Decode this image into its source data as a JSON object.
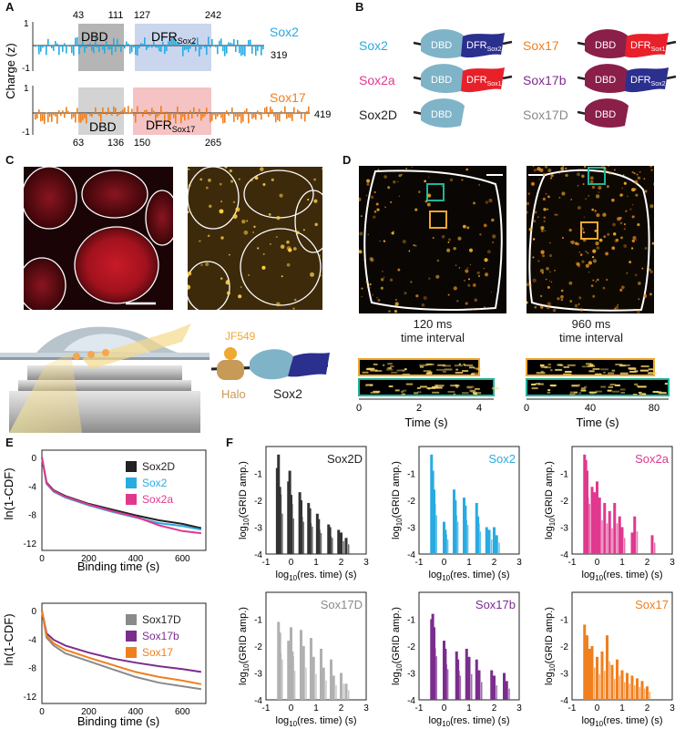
{
  "colors": {
    "sox2": "#29abe2",
    "sox2a": "#e0388f",
    "sox2d": "#222222",
    "sox17": "#f07f1e",
    "sox17b": "#7b2d8e",
    "sox17d": "#8a8a8a",
    "sox17d_bar": "#b0b0b0",
    "sox2d_bar": "#333333",
    "dbd": "#7fb3c8",
    "dbd17": "#8a1f4a",
    "dfr_sox2": "#2b2f8e",
    "dfr_sox17": "#e8202a",
    "teal_box": "#1fb59a",
    "orange_box": "#f0a830"
  },
  "panels": {
    "a": "A",
    "b": "B",
    "c": "C",
    "d": "D",
    "e": "E",
    "f": "F"
  },
  "panel_a": {
    "ylabel": "Charge (z)",
    "top": {
      "name": "Sox2",
      "dbd": "DBD",
      "dfr": "DFR",
      "dfr_sub": "Sox2",
      "pos": [
        "43",
        "111",
        "127",
        "242"
      ],
      "end": "319",
      "yticks": [
        "1",
        "0",
        "-1"
      ]
    },
    "bottom": {
      "name": "Sox17",
      "dbd": "DBD",
      "dfr": "DFR",
      "dfr_sub": "Sox17",
      "pos": [
        "63",
        "136",
        "150",
        "265"
      ],
      "end": "419",
      "yticks": [
        "1",
        "0",
        "-1"
      ]
    }
  },
  "panel_b": {
    "left": [
      {
        "name": "Sox2",
        "dbd": "DBD",
        "dfr": "DFR",
        "dfr_sub": "Sox2"
      },
      {
        "name": "Sox2a",
        "dbd": "DBD",
        "dfr": "DFR",
        "dfr_sub": "Sox17"
      },
      {
        "name": "Sox2D",
        "dbd": "DBD"
      }
    ],
    "right": [
      {
        "name": "Sox17",
        "dbd": "DBD",
        "dfr": "DFR",
        "dfr_sub": "Sox17"
      },
      {
        "name": "Sox17b",
        "dbd": "DBD",
        "dfr": "DFR",
        "dfr_sub": "Sox2"
      },
      {
        "name": "Sox17D",
        "dbd": "DBD"
      }
    ]
  },
  "panel_c": {
    "dye": "JF549",
    "tag": "Halo",
    "protein": "Sox2"
  },
  "panel_d": {
    "left_caption_1": "120 ms",
    "left_caption_2": "time interval",
    "right_caption_1": "960 ms",
    "right_caption_2": "time interval",
    "xlabel": "Time (s)",
    "left_ticks": [
      "0",
      "2",
      "4"
    ],
    "right_ticks": [
      "0",
      "40",
      "80"
    ]
  },
  "panel_e": {
    "ylabel": "ln(1-CDF)",
    "xlabel": "Binding time (s)",
    "xticks": [
      "0",
      "200",
      "400",
      "600"
    ],
    "top_yticks": [
      "0",
      "-4",
      "-8",
      "-12"
    ],
    "bottom_yticks": [
      "0",
      "-4",
      "-8",
      "-12"
    ],
    "top_legend": [
      "Sox2D",
      "Sox2",
      "Sox2a"
    ],
    "bottom_legend": [
      "Sox17D",
      "Sox17b",
      "Sox17"
    ]
  },
  "panel_f": {
    "ylabel": "log",
    "ylabel_sub": "10",
    "ylabel_rest": "(GRID amp.)",
    "xlabel": "log",
    "xlabel_sub": "10",
    "xlabel_rest": "(res. time) (s)",
    "xticks": [
      "-1",
      "0",
      "1",
      "2",
      "3"
    ],
    "yticks": [
      "-1",
      "-2",
      "-3",
      "-4"
    ],
    "subplots": [
      "Sox2D",
      "Sox2",
      "Sox2a",
      "Sox17D",
      "Sox17b",
      "Sox17"
    ]
  },
  "chart_data": [
    {
      "type": "line",
      "panel": "E-top",
      "xlabel": "Binding time (s)",
      "ylabel": "ln(1-CDF)",
      "xlim": [
        0,
        700
      ],
      "ylim": [
        -13,
        1
      ],
      "series": [
        {
          "name": "Sox2D",
          "x": [
            0,
            20,
            50,
            100,
            200,
            300,
            400,
            500,
            600,
            680
          ],
          "y": [
            0,
            -3.5,
            -4.6,
            -5.4,
            -6.5,
            -7.3,
            -8.1,
            -8.8,
            -9.3,
            -9.9
          ]
        },
        {
          "name": "Sox2",
          "x": [
            0,
            20,
            50,
            100,
            200,
            300,
            400,
            500,
            600,
            680
          ],
          "y": [
            0,
            -3.7,
            -4.8,
            -5.6,
            -6.7,
            -7.6,
            -8.4,
            -9.2,
            -9.6,
            -10.1
          ]
        },
        {
          "name": "Sox2a",
          "x": [
            0,
            20,
            50,
            100,
            200,
            300,
            400,
            500,
            600,
            680
          ],
          "y": [
            0,
            -3.6,
            -4.7,
            -5.5,
            -6.6,
            -7.5,
            -8.3,
            -9.5,
            -10.3,
            -10.6
          ]
        }
      ]
    },
    {
      "type": "line",
      "panel": "E-bottom",
      "xlabel": "Binding time (s)",
      "ylabel": "ln(1-CDF)",
      "xlim": [
        0,
        700
      ],
      "ylim": [
        -13,
        1
      ],
      "series": [
        {
          "name": "Sox17D",
          "x": [
            0,
            20,
            50,
            100,
            200,
            300,
            400,
            500,
            600,
            680
          ],
          "y": [
            0,
            -3.8,
            -4.9,
            -6.0,
            -7.1,
            -8.2,
            -9.3,
            -10.1,
            -10.6,
            -11.0
          ]
        },
        {
          "name": "Sox17b",
          "x": [
            0,
            20,
            50,
            100,
            200,
            300,
            400,
            500,
            600,
            680
          ],
          "y": [
            0,
            -3.2,
            -4.1,
            -4.9,
            -5.9,
            -6.7,
            -7.3,
            -7.8,
            -8.2,
            -8.6
          ]
        },
        {
          "name": "Sox17",
          "x": [
            0,
            20,
            50,
            100,
            200,
            300,
            400,
            500,
            600,
            680
          ],
          "y": [
            0,
            -3.5,
            -4.6,
            -5.5,
            -6.6,
            -7.6,
            -8.6,
            -9.3,
            -9.8,
            -10.3
          ]
        }
      ]
    },
    {
      "type": "bar",
      "panel": "F",
      "xlabel": "log10(res. time) (s)",
      "ylabel": "log10(GRID amp.)",
      "xlim": [
        -1,
        3
      ],
      "ylim": [
        -4,
        0
      ],
      "series": [
        {
          "name": "Sox2D",
          "x": [
            -0.55,
            -0.5,
            -0.45,
            -0.1,
            -0.05,
            0.0,
            0.35,
            0.4,
            0.7,
            0.75,
            1.05,
            1.1,
            1.5,
            1.55,
            1.9,
            2.0,
            2.2
          ],
          "y": [
            -0.8,
            -0.3,
            -1.5,
            -1.3,
            -0.9,
            -1.8,
            -1.7,
            -2.0,
            -2.1,
            -2.3,
            -2.5,
            -2.7,
            -2.9,
            -3.0,
            -3.1,
            -3.2,
            -3.4
          ]
        },
        {
          "name": "Sox2",
          "x": [
            -0.5,
            -0.45,
            -0.4,
            0.0,
            0.05,
            0.4,
            0.45,
            0.8,
            0.85,
            1.3,
            1.35,
            1.7,
            1.8,
            2.0,
            2.1
          ],
          "y": [
            -0.3,
            -0.9,
            -1.6,
            -2.8,
            -3.1,
            -1.6,
            -2.0,
            -1.9,
            -2.2,
            -2.1,
            -2.6,
            -3.0,
            -3.1,
            -3.0,
            -3.3
          ]
        },
        {
          "name": "Sox2a",
          "x": [
            -0.5,
            -0.45,
            -0.4,
            -0.2,
            -0.1,
            0.0,
            0.1,
            0.3,
            0.5,
            0.7,
            0.9,
            1.0,
            1.4,
            1.5,
            2.2
          ],
          "y": [
            -0.3,
            -0.5,
            -0.9,
            -1.5,
            -1.7,
            -1.3,
            -1.9,
            -2.1,
            -2.4,
            -2.1,
            -2.6,
            -3.0,
            -3.2,
            -2.6,
            -3.3
          ]
        },
        {
          "name": "Sox17D",
          "x": [
            -0.5,
            -0.45,
            -0.1,
            0.0,
            0.05,
            0.4,
            0.5,
            0.8,
            0.9,
            1.2,
            1.3,
            1.6,
            1.7,
            2.0,
            2.2
          ],
          "y": [
            -1.1,
            -1.5,
            -1.8,
            -1.3,
            -2.2,
            -1.4,
            -2.0,
            -1.7,
            -2.4,
            -2.1,
            -2.8,
            -2.5,
            -3.1,
            -3.0,
            -3.4
          ]
        },
        {
          "name": "Sox17b",
          "x": [
            -0.5,
            -0.45,
            -0.4,
            0.0,
            0.05,
            0.5,
            0.55,
            0.9,
            1.0,
            1.3,
            1.4,
            1.9,
            2.0,
            2.4,
            2.5
          ],
          "y": [
            -1.0,
            -0.8,
            -1.3,
            -1.8,
            -2.1,
            -2.2,
            -2.5,
            -2.1,
            -2.4,
            -2.5,
            -2.9,
            -2.9,
            -3.1,
            -3.0,
            -3.3
          ]
        },
        {
          "name": "Sox17",
          "x": [
            -0.5,
            -0.4,
            -0.3,
            -0.2,
            0.0,
            0.2,
            0.4,
            0.6,
            0.8,
            1.0,
            1.2,
            1.4,
            1.6,
            1.8,
            2.0
          ],
          "y": [
            -1.2,
            -1.6,
            -2.1,
            -2.0,
            -2.4,
            -2.2,
            -1.6,
            -2.7,
            -2.5,
            -2.9,
            -3.0,
            -3.1,
            -3.2,
            -3.3,
            -3.5
          ]
        }
      ]
    }
  ]
}
